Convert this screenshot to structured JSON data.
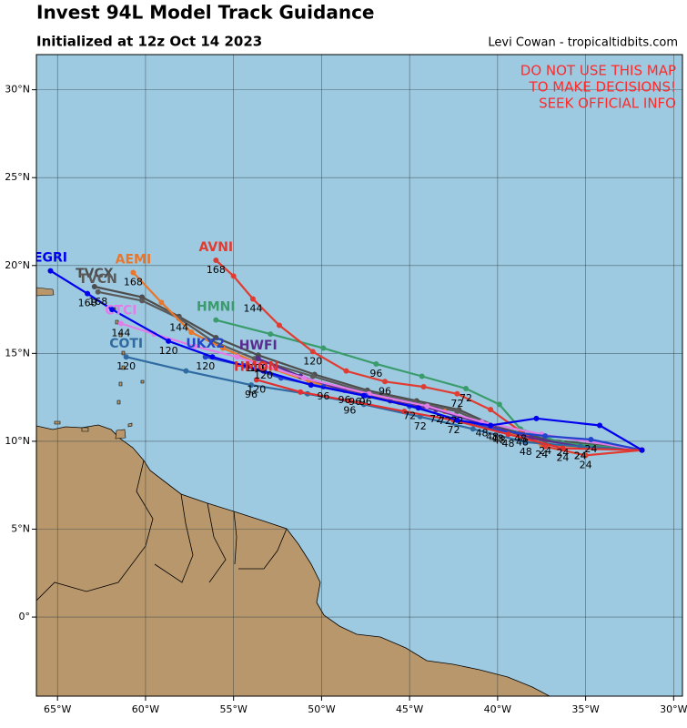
{
  "header": {
    "title": "Invest 94L Model Track Guidance",
    "subtitle": "Initialized at 12z Oct 14 2023",
    "credit": "Levi Cowan - tropicaltidbits.com"
  },
  "warning": [
    "DO NOT USE THIS MAP",
    "TO MAKE DECISIONS!",
    "SEEK OFFICIAL INFO"
  ],
  "map": {
    "lon_range": [
      -66.2,
      -29.5
    ],
    "lat_range": [
      -4.5,
      32
    ],
    "lon_ticks": [
      {
        "value": -65,
        "label": "65°W"
      },
      {
        "value": -60,
        "label": "60°W"
      },
      {
        "value": -55,
        "label": "55°W"
      },
      {
        "value": -50,
        "label": "50°W"
      },
      {
        "value": -45,
        "label": "45°W"
      },
      {
        "value": -40,
        "label": "40°W"
      },
      {
        "value": -35,
        "label": "35°W"
      },
      {
        "value": -30,
        "label": "30°W"
      }
    ],
    "lat_ticks": [
      {
        "value": 0,
        "label": "0°"
      },
      {
        "value": 5,
        "label": "5°N"
      },
      {
        "value": 10,
        "label": "10°N"
      },
      {
        "value": 15,
        "label": "15°N"
      },
      {
        "value": 20,
        "label": "20°N"
      },
      {
        "value": 25,
        "label": "25°N"
      },
      {
        "value": 30,
        "label": "30°N"
      }
    ]
  },
  "tracks": [
    {
      "name": "TVCX",
      "color": "#4d4d4d",
      "lon": [
        -62.9,
        -60.2,
        -58.1,
        -56.0,
        -53.6,
        -50.4,
        -47.4,
        -44.6,
        -42.2,
        -40.0,
        -37.2,
        -31.8
      ],
      "lat": [
        18.8,
        18.2,
        17.1,
        15.9,
        14.9,
        13.8,
        12.9,
        12.3,
        11.8,
        10.8,
        10.1,
        9.5
      ],
      "hours": [
        null,
        null,
        null,
        null,
        null,
        null,
        null,
        null,
        null,
        null,
        null,
        null
      ]
    },
    {
      "name": "TVCN",
      "color": "#5a5a5a",
      "lon": [
        -62.7,
        -60.2,
        -58.1,
        -56.2,
        -53.8,
        -50.5,
        -47.5,
        -44.7,
        -42.3,
        -40.0,
        -37.3,
        -31.8
      ],
      "lat": [
        18.5,
        18.0,
        17.0,
        15.7,
        14.7,
        13.7,
        12.8,
        12.2,
        11.7,
        10.7,
        10.0,
        9.5
      ],
      "hours": [
        168,
        null,
        144,
        null,
        120,
        null,
        96,
        null,
        72,
        48,
        24,
        null
      ]
    },
    {
      "name": "AEMI",
      "color": "#e8772e",
      "lon": [
        -60.7,
        -59.1,
        -57.4,
        -55.6,
        -53.3,
        -50.7,
        -48.1,
        -45.6,
        -43.0,
        -40.3,
        -37.5,
        -31.8
      ],
      "lat": [
        19.6,
        17.9,
        16.2,
        15.3,
        14.3,
        13.4,
        12.8,
        12.2,
        11.7,
        10.8,
        9.8,
        9.5
      ],
      "hours": [
        168,
        null,
        null,
        null,
        120,
        null,
        96,
        null,
        72,
        48,
        24,
        null
      ]
    },
    {
      "name": "HMNI",
      "color": "#3a9c6b",
      "lon": [
        -56.0,
        -52.9,
        -49.9,
        -46.9,
        -44.3,
        -41.8,
        -39.9,
        -38.7,
        -36.3,
        -31.8
      ],
      "lat": [
        16.9,
        16.1,
        15.3,
        14.4,
        13.7,
        13.0,
        12.1,
        10.7,
        9.9,
        9.5
      ],
      "hours": [
        null,
        null,
        null,
        96,
        null,
        72,
        null,
        48,
        24,
        null
      ]
    },
    {
      "name": "AVNI",
      "color": "#e03c31",
      "lon": [
        -56.0,
        -55.0,
        -53.9,
        -52.4,
        -50.5,
        -48.6,
        -46.4,
        -44.2,
        -42.3,
        -40.4,
        -38.6,
        -37.3,
        -35.0,
        -31.8
      ],
      "lat": [
        20.3,
        19.4,
        18.1,
        16.6,
        15.1,
        14.0,
        13.4,
        13.1,
        12.7,
        11.8,
        10.5,
        9.7,
        9.2,
        9.5
      ],
      "hours": [
        168,
        null,
        144,
        null,
        120,
        null,
        96,
        null,
        72,
        null,
        48,
        null,
        24,
        null
      ]
    },
    {
      "name": "HWFI",
      "color": "#5b2c8f",
      "lon": [
        -53.6,
        -51.2,
        -48.7,
        -46.1,
        -43.5,
        -40.9,
        -38.1,
        -35.3,
        -31.8
      ],
      "lat": [
        14.7,
        13.7,
        12.9,
        12.3,
        11.8,
        11.0,
        10.2,
        9.7,
        9.5
      ],
      "hours": [
        120,
        null,
        96,
        null,
        72,
        48,
        null,
        24,
        null
      ]
    },
    {
      "name": "COTI",
      "color": "#2f6aa0",
      "lon": [
        -61.1,
        -57.7,
        -54.0,
        -50.8,
        -47.6,
        -44.4,
        -41.4,
        -38.4,
        -35.3,
        -31.8
      ],
      "lat": [
        14.8,
        14.0,
        13.2,
        12.7,
        12.1,
        11.4,
        10.7,
        9.95,
        9.7,
        9.5
      ],
      "hours": [
        120,
        null,
        96,
        null,
        null,
        72,
        null,
        48,
        24,
        null
      ]
    },
    {
      "name": "CTCI",
      "color": "#e27de8",
      "lon": [
        -61.4,
        -59.5,
        -57.2,
        -54.8,
        -51.0,
        -47.3,
        -44.0,
        -40.9,
        -37.5,
        -31.8
      ],
      "lat": [
        16.7,
        16.1,
        15.4,
        14.8,
        13.6,
        12.7,
        12.0,
        11.1,
        10.4,
        9.5
      ],
      "hours": [
        144,
        null,
        null,
        null,
        null,
        null,
        null,
        null,
        null,
        null
      ]
    },
    {
      "name": "UKX2",
      "color": "#2244cc",
      "lon": [
        -56.6,
        -54.4,
        -52.3,
        -49.9,
        -47.5,
        -45.0,
        -42.5,
        -39.9,
        -37.3,
        -34.7,
        -31.8
      ],
      "lat": [
        14.8,
        14.3,
        13.6,
        13.1,
        12.6,
        12.0,
        11.3,
        10.6,
        10.3,
        10.1,
        9.5
      ],
      "hours": [
        120,
        null,
        null,
        96,
        null,
        72,
        null,
        48,
        null,
        24,
        null
      ]
    },
    {
      "name": "HMON",
      "color": "#e03030",
      "lon": [
        -53.7,
        -51.2,
        -48.4,
        -45.3,
        -42.5,
        -39.4,
        -36.3,
        -31.8
      ],
      "lat": [
        13.5,
        12.8,
        12.3,
        11.7,
        11.2,
        10.4,
        9.6,
        9.5
      ],
      "hours": [
        120,
        null,
        96,
        null,
        72,
        48,
        24,
        null
      ]
    },
    {
      "name": "EGRI",
      "color": "#0000ee",
      "lon": [
        -65.4,
        -63.3,
        -61.9,
        -58.7,
        -56.2,
        -53.3,
        -50.6,
        -47.6,
        -44.5,
        -42.3,
        -40.4,
        -37.8,
        -34.2,
        -31.8
      ],
      "lat": [
        19.7,
        18.4,
        17.5,
        15.7,
        14.8,
        14.0,
        13.2,
        12.6,
        11.9,
        11.2,
        10.9,
        11.3,
        10.9,
        9.5
      ],
      "hours": [
        null,
        168,
        null,
        120,
        null,
        null,
        null,
        null,
        null,
        null,
        null,
        null,
        null,
        null
      ]
    }
  ]
}
